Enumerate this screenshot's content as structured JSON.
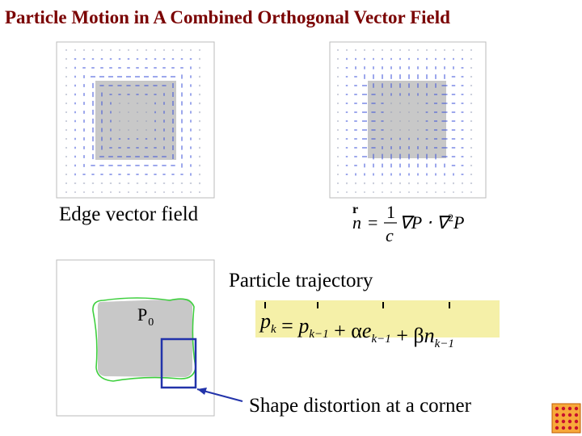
{
  "title": "Particle Motion in A Combined Orthogonal Vector Field",
  "edge_field": {
    "caption": "Edge vector field"
  },
  "normal_field": {
    "formula": {
      "vector_mark": "r",
      "lhs": "n",
      "eq": "=",
      "numerator": "1",
      "denominator": "c",
      "rhs": "∇P ⋅ ∇",
      "sup": "2",
      "tail": "P"
    }
  },
  "trajectory": {
    "label": "Particle trajectory",
    "start_label": {
      "text": "P",
      "sub": "0"
    },
    "formula": [
      {
        "text": "p",
        "sub": "k"
      },
      {
        "text": " = "
      },
      {
        "text": "p",
        "sub": "k−1"
      },
      {
        "text": " + α"
      },
      {
        "text": "e",
        "sub": "k−1"
      },
      {
        "text": " + β"
      },
      {
        "text": "n",
        "sub": "k−1"
      }
    ],
    "annotation": "Shape distortion at a corner"
  }
}
